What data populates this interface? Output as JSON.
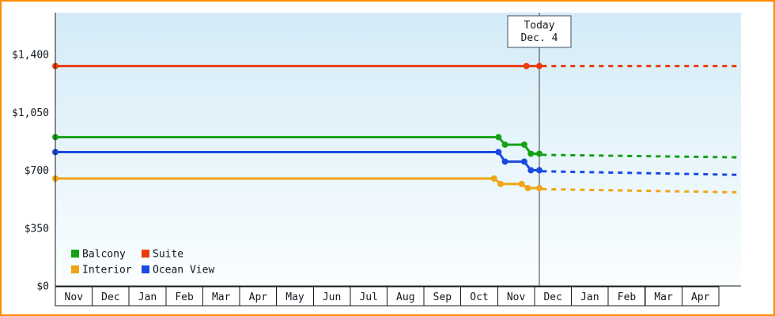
{
  "frame": {
    "border_color": "#ff8c00"
  },
  "chart_data": {
    "type": "line",
    "title": "",
    "xlabel": "",
    "ylabel": "",
    "ylim": [
      0,
      1470
    ],
    "xlim_months": [
      0,
      18.6
    ],
    "grid": false,
    "legend_position": "bottom-left",
    "categories": [
      "Nov",
      "Dec",
      "Jan",
      "Feb",
      "Mar",
      "Apr",
      "May",
      "Jun",
      "Jul",
      "Aug",
      "Sep",
      "Oct",
      "Nov",
      "Dec",
      "Jan",
      "Feb",
      "Mar",
      "Apr"
    ],
    "y_ticks": [
      {
        "value": 1400,
        "label": "$1,400"
      },
      {
        "value": 1050,
        "label": "$1,050"
      },
      {
        "value": 700,
        "label": "$700"
      },
      {
        "value": 350,
        "label": "$350"
      },
      {
        "value": 0,
        "label": "$0"
      }
    ],
    "today": {
      "x_month": 13.13,
      "label_line1": "Today",
      "label_line2": "Dec. 4"
    },
    "series": [
      {
        "name": "Suite",
        "color": "#e93b0c",
        "solid": [
          [
            0,
            1330
          ],
          [
            12.78,
            1330
          ],
          [
            13.13,
            1330
          ]
        ],
        "markers": [
          [
            0,
            1330
          ],
          [
            12.78,
            1330
          ],
          [
            13.13,
            1330
          ]
        ],
        "dotted": [
          [
            13.2,
            1330
          ],
          [
            18.6,
            1330
          ]
        ]
      },
      {
        "name": "Balcony",
        "color": "#16a016",
        "solid": [
          [
            0,
            900
          ],
          [
            12.02,
            900
          ],
          [
            12.2,
            855
          ],
          [
            12.72,
            855
          ],
          [
            12.9,
            800
          ],
          [
            13.13,
            800
          ]
        ],
        "markers": [
          [
            0,
            900
          ],
          [
            12.02,
            900
          ],
          [
            12.2,
            855
          ],
          [
            12.72,
            855
          ],
          [
            12.9,
            800
          ],
          [
            13.13,
            800
          ]
        ],
        "dotted": [
          [
            13.2,
            793
          ],
          [
            18.6,
            778
          ]
        ]
      },
      {
        "name": "Ocean View",
        "color": "#1b49e0",
        "solid": [
          [
            0,
            810
          ],
          [
            12.02,
            810
          ],
          [
            12.2,
            752
          ],
          [
            12.72,
            752
          ],
          [
            12.9,
            700
          ],
          [
            13.13,
            700
          ]
        ],
        "markers": [
          [
            0,
            810
          ],
          [
            12.02,
            810
          ],
          [
            12.2,
            752
          ],
          [
            12.72,
            752
          ],
          [
            12.9,
            700
          ],
          [
            13.13,
            700
          ]
        ],
        "dotted": [
          [
            13.2,
            694
          ],
          [
            18.6,
            672
          ]
        ]
      },
      {
        "name": "Interior",
        "color": "#efa515",
        "solid": [
          [
            0,
            650
          ],
          [
            11.9,
            650
          ],
          [
            12.08,
            617
          ],
          [
            12.65,
            617
          ],
          [
            12.82,
            592
          ],
          [
            13.13,
            592
          ]
        ],
        "markers": [
          [
            0,
            650
          ],
          [
            11.9,
            650
          ],
          [
            12.08,
            617
          ],
          [
            12.65,
            617
          ],
          [
            12.82,
            592
          ],
          [
            13.13,
            592
          ]
        ],
        "dotted": [
          [
            13.2,
            586
          ],
          [
            18.6,
            566
          ]
        ]
      }
    ],
    "legend": {
      "items": [
        {
          "label": "Balcony",
          "color": "#16a016"
        },
        {
          "label": "Suite",
          "color": "#e93b0c"
        },
        {
          "label": "Interior",
          "color": "#efa515"
        },
        {
          "label": "Ocean View",
          "color": "#1b49e0"
        }
      ]
    }
  }
}
